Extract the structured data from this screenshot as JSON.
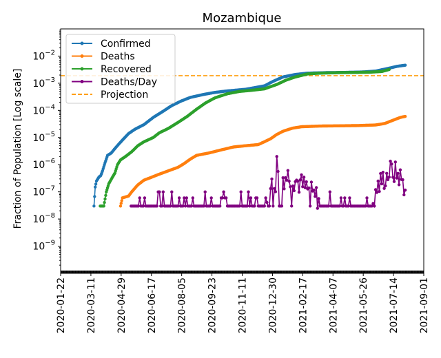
{
  "chart_data": {
    "type": "line",
    "title": "Mozambique",
    "xlabel": "",
    "ylabel": "Fraction of Population [Log scale]",
    "yscale": "log",
    "ylim": [
      1e-10,
      0.1
    ],
    "xlim": [
      "2020-01-22",
      "2021-09-01"
    ],
    "x_ticks": [
      "2020-01-22",
      "2020-03-11",
      "2020-04-29",
      "2020-06-17",
      "2020-08-05",
      "2020-09-23",
      "2020-11-11",
      "2020-12-30",
      "2021-02-17",
      "2021-04-07",
      "2021-05-26",
      "2021-07-14",
      "2021-09-01"
    ],
    "y_ticks": [
      {
        "value": 1e-09,
        "base": "10",
        "exp": "−9"
      },
      {
        "value": 1e-08,
        "base": "10",
        "exp": "−8"
      },
      {
        "value": 1e-07,
        "base": "10",
        "exp": "−7"
      },
      {
        "value": 1e-06,
        "base": "10",
        "exp": "−6"
      },
      {
        "value": 1e-05,
        "base": "10",
        "exp": "−5"
      },
      {
        "value": 0.0001,
        "base": "10",
        "exp": "−4"
      },
      {
        "value": 0.001,
        "base": "10",
        "exp": "−3"
      },
      {
        "value": 0.01,
        "base": "10",
        "exp": "−2"
      }
    ],
    "legend": {
      "placement": "upper-left",
      "entries": [
        "Confirmed",
        "Deaths",
        "Recovered",
        "Deaths/Day",
        "Projection"
      ]
    },
    "projection": {
      "name": "Projection",
      "value": 0.0019,
      "color": "#ff9f0e"
    },
    "series": [
      {
        "name": "Confirmed",
        "color": "#1f77b4",
        "marker": true,
        "points": [
          [
            54,
            3e-08
          ],
          [
            56,
            1.5e-07
          ],
          [
            58,
            2.5e-07
          ],
          [
            62,
            3.5e-07
          ],
          [
            65,
            4e-07
          ],
          [
            68,
            6e-07
          ],
          [
            72,
            1.2e-06
          ],
          [
            76,
            2.2e-06
          ],
          [
            82,
            2.7e-06
          ],
          [
            90,
            4.5e-06
          ],
          [
            100,
            8e-06
          ],
          [
            110,
            1.4e-05
          ],
          [
            120,
            2e-05
          ],
          [
            135,
            3e-05
          ],
          [
            150,
            5.5e-05
          ],
          [
            165,
            9e-05
          ],
          [
            180,
            0.00015
          ],
          [
            195,
            0.00022
          ],
          [
            210,
            0.0003
          ],
          [
            230,
            0.00038
          ],
          [
            250,
            0.00046
          ],
          [
            270,
            0.00052
          ],
          [
            300,
            0.0006
          ],
          [
            330,
            0.0008
          ],
          [
            345,
            0.0012
          ],
          [
            360,
            0.0017
          ],
          [
            380,
            0.0021
          ],
          [
            400,
            0.00235
          ],
          [
            430,
            0.00245
          ],
          [
            460,
            0.0025
          ],
          [
            490,
            0.0026
          ],
          [
            510,
            0.0028
          ],
          [
            530,
            0.0035
          ],
          [
            545,
            0.0042
          ],
          [
            558,
            0.0046
          ]
        ]
      },
      {
        "name": "Deaths",
        "color": "#ff7f0e",
        "marker": true,
        "points": [
          [
            97,
            3e-08
          ],
          [
            100,
            6e-08
          ],
          [
            110,
            7e-08
          ],
          [
            115,
            1e-07
          ],
          [
            125,
            1.8e-07
          ],
          [
            135,
            2.7e-07
          ],
          [
            145,
            3.3e-07
          ],
          [
            160,
            4.5e-07
          ],
          [
            175,
            6e-07
          ],
          [
            190,
            8e-07
          ],
          [
            200,
            1.1e-06
          ],
          [
            210,
            1.6e-06
          ],
          [
            220,
            2.2e-06
          ],
          [
            240,
            2.7e-06
          ],
          [
            260,
            3.5e-06
          ],
          [
            280,
            4.5e-06
          ],
          [
            300,
            5e-06
          ],
          [
            320,
            5.5e-06
          ],
          [
            330,
            7e-06
          ],
          [
            340,
            9e-06
          ],
          [
            350,
            1.3e-05
          ],
          [
            360,
            1.7e-05
          ],
          [
            375,
            2.2e-05
          ],
          [
            390,
            2.5e-05
          ],
          [
            420,
            2.65e-05
          ],
          [
            450,
            2.7e-05
          ],
          [
            480,
            2.75e-05
          ],
          [
            510,
            2.9e-05
          ],
          [
            525,
            3.3e-05
          ],
          [
            540,
            4.5e-05
          ],
          [
            550,
            5.5e-05
          ],
          [
            558,
            6e-05
          ]
        ]
      },
      {
        "name": "Recovered",
        "color": "#2ca02c",
        "marker": true,
        "points": [
          [
            64,
            3e-08
          ],
          [
            70,
            3e-08
          ],
          [
            74,
            1e-07
          ],
          [
            78,
            2e-07
          ],
          [
            84,
            3.5e-07
          ],
          [
            88,
            5e-07
          ],
          [
            92,
            1e-06
          ],
          [
            97,
            1.5e-06
          ],
          [
            105,
            2e-06
          ],
          [
            115,
            3e-06
          ],
          [
            125,
            5e-06
          ],
          [
            135,
            7e-06
          ],
          [
            150,
            1e-05
          ],
          [
            160,
            1.5e-05
          ],
          [
            175,
            2.2e-05
          ],
          [
            190,
            3.6e-05
          ],
          [
            205,
            6e-05
          ],
          [
            220,
            0.00011
          ],
          [
            235,
            0.00019
          ],
          [
            250,
            0.00029
          ],
          [
            270,
            0.00041
          ],
          [
            290,
            0.0005
          ],
          [
            310,
            0.00055
          ],
          [
            330,
            0.00062
          ],
          [
            350,
            0.0009
          ],
          [
            365,
            0.0013
          ],
          [
            380,
            0.0017
          ],
          [
            400,
            0.0022
          ],
          [
            420,
            0.00235
          ],
          [
            450,
            0.00245
          ],
          [
            480,
            0.0025
          ],
          [
            500,
            0.00255
          ],
          [
            520,
            0.0027
          ],
          [
            532,
            0.0032
          ]
        ]
      },
      {
        "name": "Deaths/Day",
        "color": "#800080",
        "marker": true,
        "noisy": true,
        "start_day": 114,
        "end_day": 558,
        "seed_level": [
          [
            114,
            3e-08
          ],
          [
            200,
            3e-08
          ],
          [
            230,
            5e-08
          ],
          [
            260,
            4e-08
          ],
          [
            300,
            3e-08
          ],
          [
            330,
            5e-08
          ],
          [
            350,
            3e-07
          ],
          [
            370,
            4e-07
          ],
          [
            395,
            1.5e-07
          ],
          [
            410,
            7e-08
          ],
          [
            440,
            4e-08
          ],
          [
            470,
            3e-08
          ],
          [
            500,
            5e-08
          ],
          [
            520,
            2.5e-07
          ],
          [
            535,
            6e-07
          ],
          [
            548,
            4e-07
          ],
          [
            558,
            1.5e-07
          ]
        ],
        "peak": {
          "day": 350,
          "value": 2e-06
        }
      }
    ]
  }
}
